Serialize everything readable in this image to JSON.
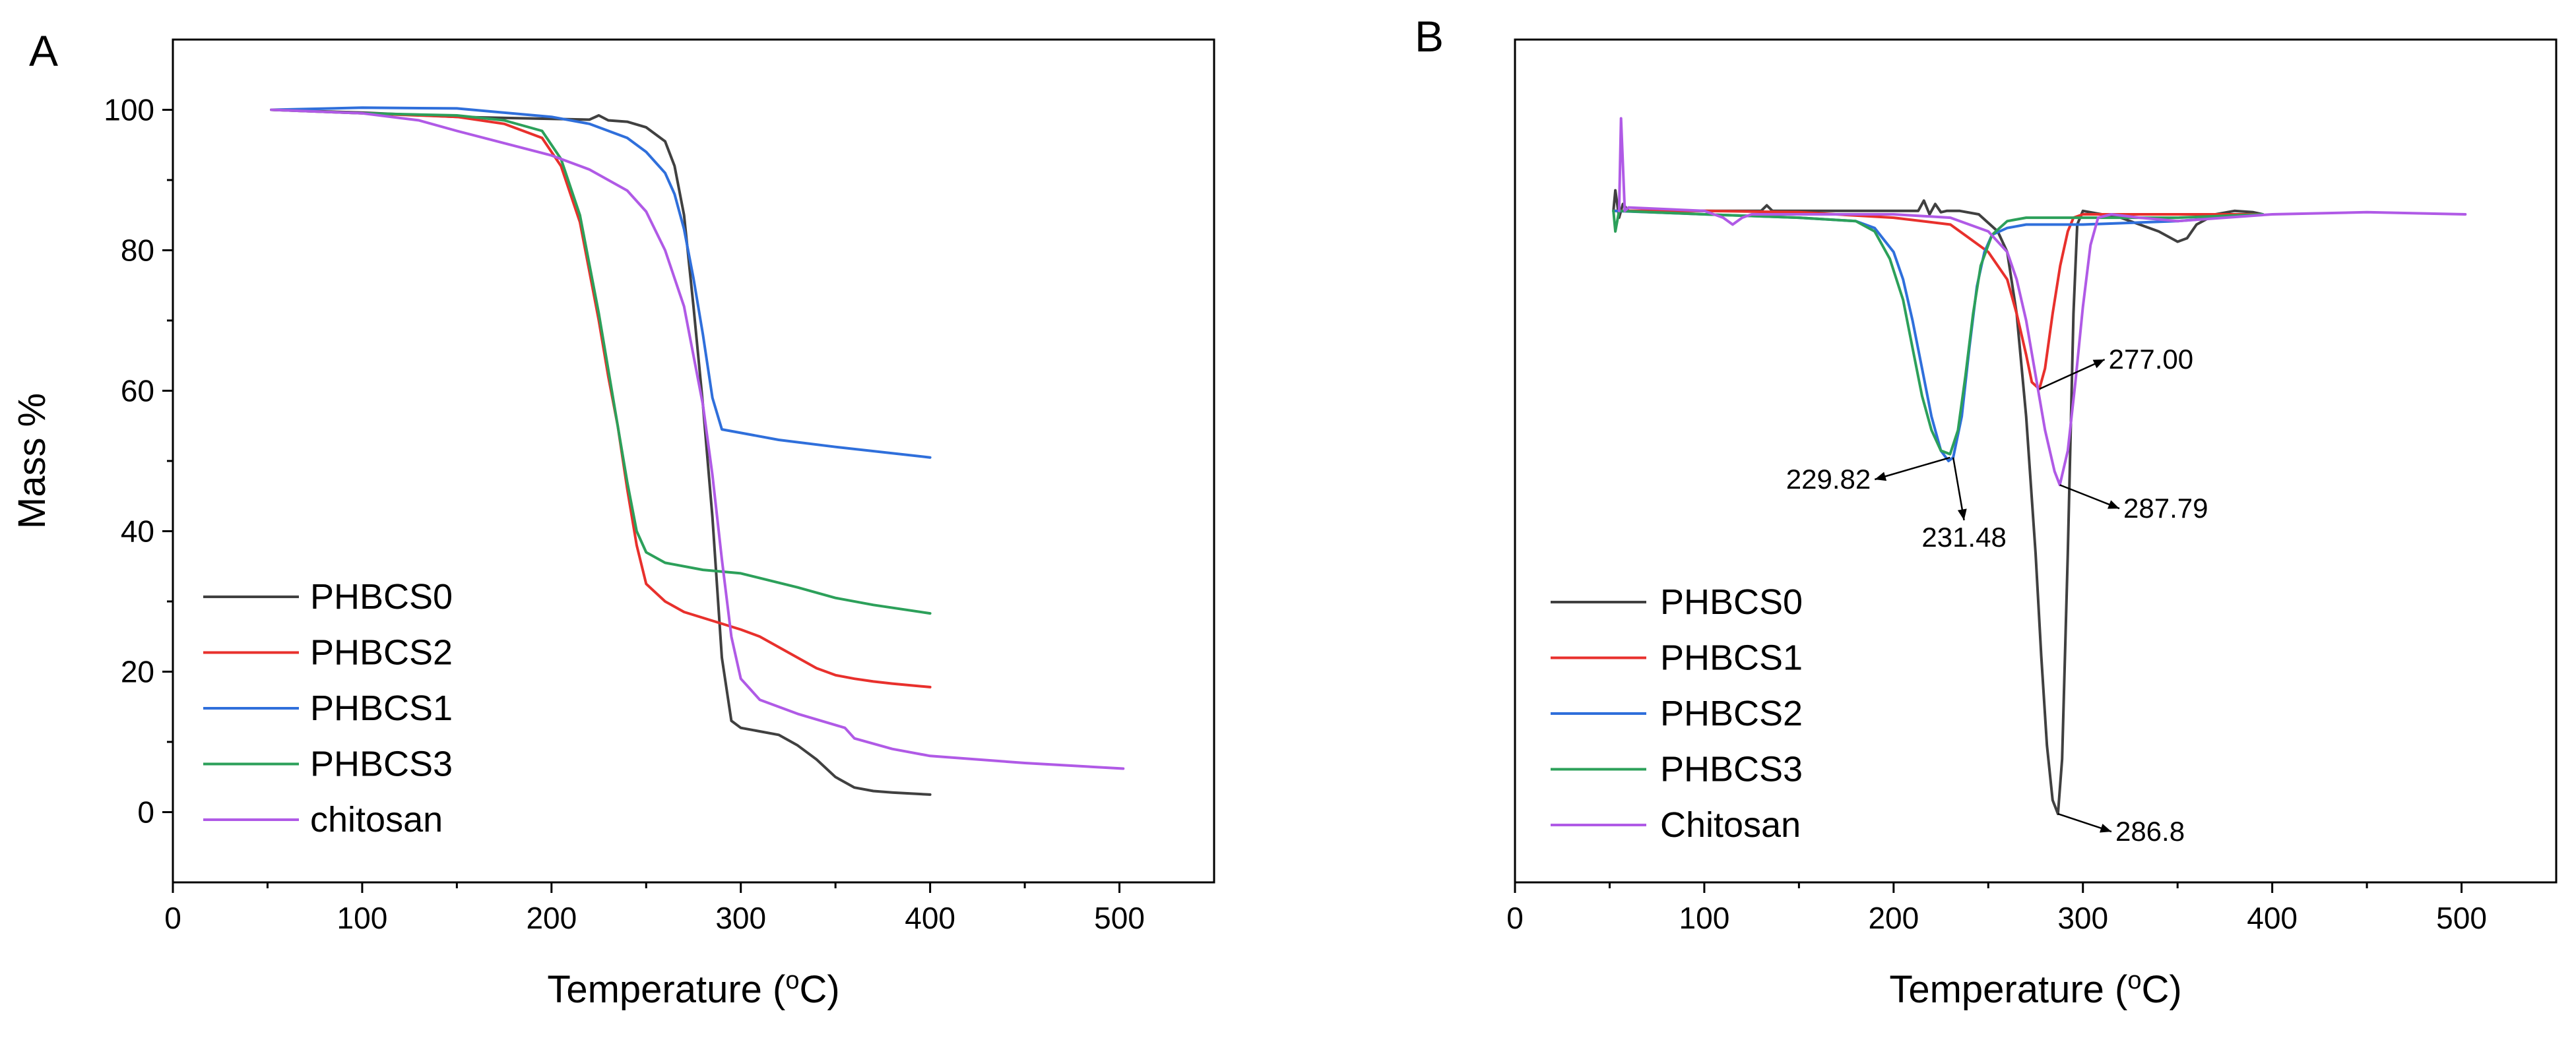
{
  "figure": {
    "panels": [
      "A",
      "B"
    ]
  },
  "chart_data": [
    {
      "type": "line",
      "panel": "A",
      "title": "",
      "xlabel": "Temperature (",
      "xlabel_sup": "o",
      "xlabel_end": "C)",
      "ylabel": "Mass %",
      "xlim": [
        0,
        550
      ],
      "ylim": [
        -10,
        110
      ],
      "xticks": [
        0,
        100,
        200,
        300,
        400,
        500
      ],
      "xtick_labels": [
        "0",
        "100",
        "200",
        "300",
        "400",
        "500"
      ],
      "yticks": [
        0,
        20,
        40,
        60,
        80,
        100
      ],
      "ytick_labels": [
        "0",
        "20",
        "40",
        "60",
        "80",
        "100"
      ],
      "legend_position": "bottom-left",
      "series": [
        {
          "name": "PHBCS0",
          "color": "#404040",
          "x": [
            52,
            100,
            150,
            200,
            220,
            225,
            230,
            240,
            250,
            260,
            265,
            270,
            275,
            280,
            285,
            290,
            295,
            300,
            310,
            320,
            330,
            340,
            350,
            360,
            370,
            380,
            400
          ],
          "y": [
            100,
            99.6,
            99,
            98.7,
            98.6,
            99.2,
            98.5,
            98.3,
            97.5,
            95.5,
            92,
            85,
            72,
            58,
            42,
            22,
            13,
            12,
            11.5,
            11,
            9.5,
            7.5,
            5,
            3.5,
            3,
            2.8,
            2.5
          ]
        },
        {
          "name": "PHBCS2",
          "color": "#e8302c",
          "x": [
            52,
            100,
            150,
            175,
            195,
            205,
            215,
            225,
            230,
            235,
            240,
            245,
            250,
            260,
            270,
            300,
            310,
            320,
            330,
            340,
            350,
            360,
            370,
            380,
            400
          ],
          "y": [
            100,
            99.5,
            99,
            98,
            96,
            92,
            84,
            70,
            62,
            55,
            46,
            38,
            32.5,
            30,
            28.5,
            26,
            25,
            23.5,
            22,
            20.5,
            19.5,
            19,
            18.6,
            18.3,
            17.8
          ]
        },
        {
          "name": "PHBCS1",
          "color": "#2f6fdb",
          "x": [
            52,
            100,
            150,
            200,
            220,
            240,
            250,
            260,
            265,
            270,
            275,
            280,
            285,
            290,
            300,
            320,
            350,
            400
          ],
          "y": [
            100,
            100.3,
            100.2,
            99,
            98,
            96,
            94,
            91,
            88,
            83,
            76,
            68,
            59,
            54.5,
            54,
            53,
            52,
            50.5
          ]
        },
        {
          "name": "PHBCS3",
          "color": "#2ca05a",
          "x": [
            52,
            100,
            150,
            175,
            195,
            205,
            215,
            225,
            230,
            235,
            240,
            245,
            250,
            260,
            280,
            300,
            330,
            350,
            370,
            400
          ],
          "y": [
            100,
            99.5,
            99.2,
            98.5,
            97,
            93,
            85,
            71,
            63,
            55,
            47,
            40,
            37,
            35.5,
            34.5,
            34,
            32,
            30.5,
            29.5,
            28.3
          ]
        },
        {
          "name": "chitosan",
          "color": "#b05ae6",
          "x": [
            52,
            100,
            130,
            150,
            200,
            220,
            240,
            250,
            260,
            270,
            280,
            285,
            290,
            295,
            300,
            305,
            310,
            330,
            355,
            360,
            380,
            400,
            450,
            502
          ],
          "y": [
            100,
            99.5,
            98.5,
            97,
            93.5,
            91.5,
            88.5,
            85.5,
            80,
            72,
            58,
            48,
            36,
            25,
            19,
            17.5,
            16,
            14,
            12,
            10.5,
            9,
            8,
            7,
            6.2
          ]
        }
      ]
    },
    {
      "type": "line",
      "panel": "B",
      "title": "",
      "xlabel": "Temperature (",
      "xlabel_sup": "o",
      "xlabel_end": "C)",
      "ylabel": "",
      "xlim": [
        0,
        550
      ],
      "ylim": [
        -8,
        115
      ],
      "xticks": [
        0,
        100,
        200,
        300,
        400,
        500
      ],
      "xtick_labels": [
        "0",
        "100",
        "200",
        "300",
        "400",
        "500"
      ],
      "legend_position": "bottom-left",
      "annotations": [
        {
          "text": "277.00",
          "at": [
            277,
            64
          ],
          "label": [
            321,
            69.5
          ]
        },
        {
          "text": "229.82",
          "at": [
            229.82,
            54
          ],
          "label": [
            180,
            50
          ]
        },
        {
          "text": "231.48",
          "at": [
            231.48,
            54
          ],
          "label": [
            239,
            42
          ]
        },
        {
          "text": "287.79",
          "at": [
            287.79,
            50
          ],
          "label": [
            329,
            45.5
          ]
        },
        {
          "text": "286.8",
          "at": [
            286.8,
            2
          ],
          "label": [
            325,
            -1.5
          ]
        }
      ],
      "series": [
        {
          "name": "PHBCS0",
          "color": "#404040",
          "x": [
            52,
            53,
            55,
            57,
            60,
            100,
            130,
            133,
            136,
            200,
            213,
            216,
            219,
            222,
            225,
            228,
            235,
            245,
            255,
            260,
            265,
            270,
            275,
            278,
            281,
            284,
            286.8,
            289,
            292,
            295,
            297,
            300,
            310,
            320,
            330,
            340,
            350,
            355,
            360,
            370,
            380,
            390,
            395
          ],
          "y": [
            90,
            93,
            89,
            91,
            90,
            90,
            90,
            90.8,
            90,
            90,
            90,
            91.5,
            89.5,
            91,
            89.8,
            90,
            90,
            89.5,
            87,
            84,
            75,
            60,
            40,
            25,
            12,
            4,
            2,
            10,
            40,
            75,
            88,
            90,
            89.5,
            89,
            88,
            87,
            85.5,
            86,
            88,
            89.5,
            90,
            89.8,
            89.5
          ]
        },
        {
          "name": "PHBCS1",
          "color": "#e8302c",
          "x": [
            52,
            100,
            150,
            200,
            230,
            240,
            250,
            260,
            265,
            270,
            273,
            277,
            280,
            284,
            288,
            292,
            295,
            300,
            330,
            395
          ],
          "y": [
            90,
            90,
            89.8,
            89,
            88,
            86,
            84,
            80,
            75,
            69,
            65,
            64,
            67,
            75,
            82,
            87,
            89,
            89.5,
            89.5,
            89.5
          ]
        },
        {
          "name": "PHBCS2",
          "color": "#2f6fdb",
          "x": [
            52,
            100,
            150,
            180,
            190,
            200,
            205,
            210,
            215,
            220,
            225,
            229,
            231.48,
            236,
            240,
            244,
            248,
            252,
            260,
            270,
            300,
            350,
            395
          ],
          "y": [
            90,
            89.5,
            89,
            88.5,
            87.5,
            84,
            80,
            74,
            67,
            60,
            55,
            53.5,
            54,
            60,
            70,
            79,
            84,
            86.5,
            87.5,
            88,
            88,
            88.5,
            89.5
          ]
        },
        {
          "name": "PHBCS3",
          "color": "#2ca05a",
          "x": [
            52,
            53,
            55,
            100,
            150,
            180,
            190,
            198,
            205,
            210,
            215,
            220,
            225,
            229.82,
            234,
            238,
            242,
            246,
            252,
            260,
            270,
            300,
            350,
            395
          ],
          "y": [
            90,
            87,
            90,
            89.5,
            89,
            88.5,
            87,
            83,
            77,
            70,
            63,
            58,
            55,
            54.5,
            58,
            66,
            75,
            82,
            86.5,
            88.5,
            89,
            89,
            89,
            89.5
          ]
        },
        {
          "name": "Chitosan",
          "color": "#b05ae6",
          "x": [
            55,
            56,
            58,
            60,
            100,
            110,
            115,
            120,
            125,
            150,
            200,
            230,
            250,
            260,
            265,
            270,
            275,
            280,
            285,
            287.79,
            292,
            296,
            300,
            304,
            308,
            315,
            330,
            350,
            400,
            450,
            502
          ],
          "y": [
            90,
            103.5,
            90,
            90.5,
            90,
            89,
            88,
            89,
            89.5,
            89.5,
            89.5,
            89,
            87,
            84,
            80,
            74,
            66,
            58,
            52,
            50,
            55,
            65,
            76,
            85,
            89,
            89.5,
            89,
            88.5,
            89.5,
            89.8,
            89.5
          ]
        }
      ]
    }
  ]
}
